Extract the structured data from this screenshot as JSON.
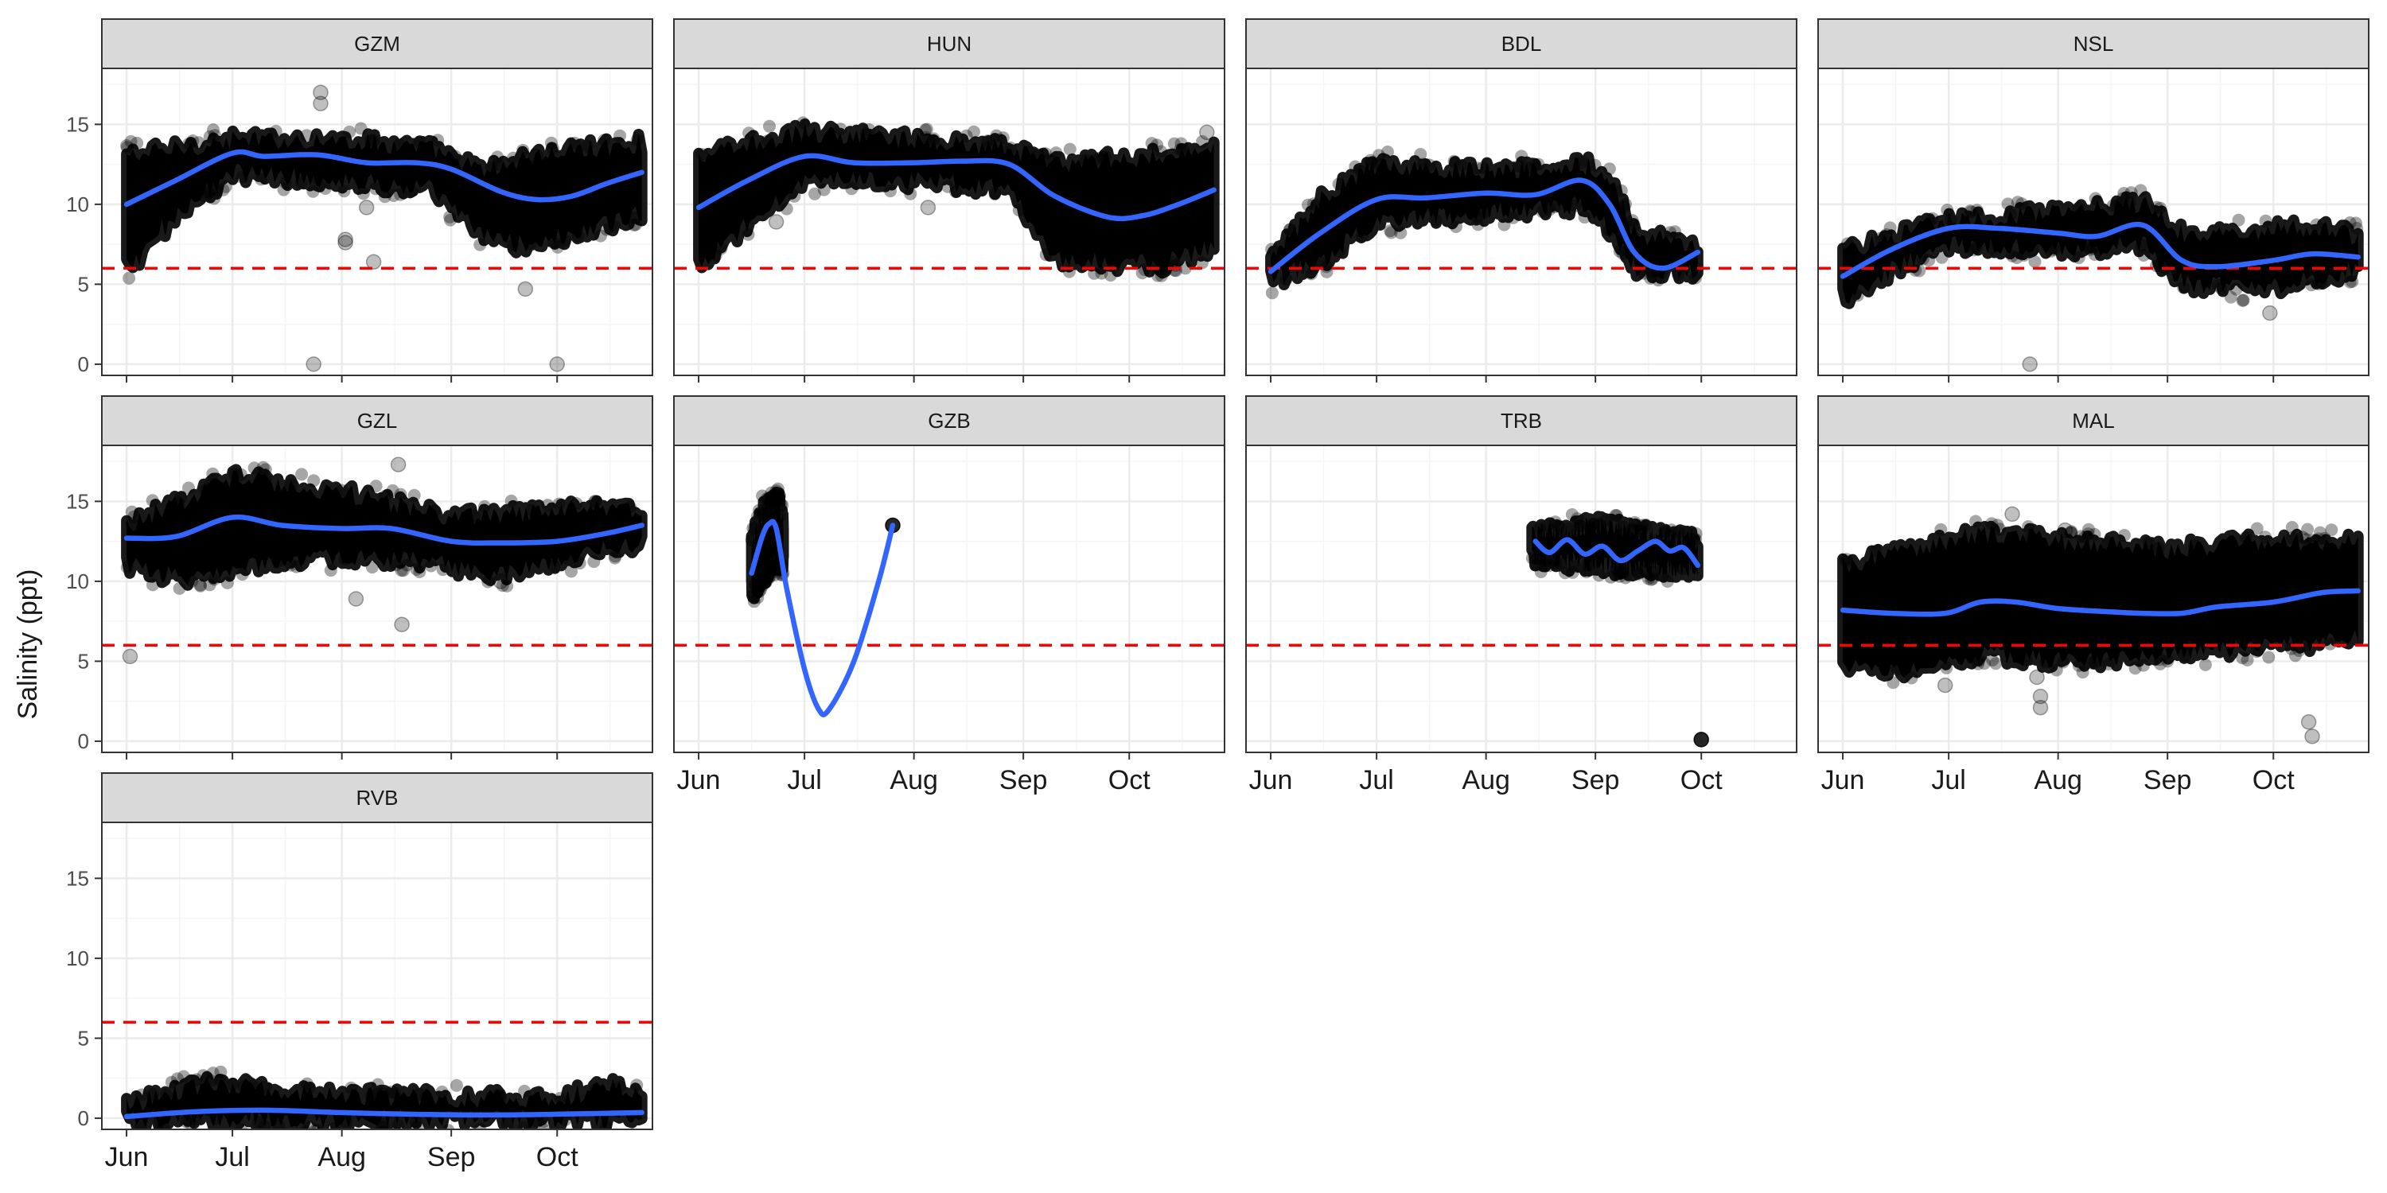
{
  "colors": {
    "panel_border": "#333333",
    "strip_fill": "#d9d9d9",
    "grid_major": "#ebebeb",
    "grid_minor": "#f5f5f5",
    "points": "#000000",
    "smooth": "#3366ff",
    "threshold": "#ff0000"
  },
  "chart_data": {
    "type": "scatter",
    "subtype": "faceted time series with smoother",
    "xlabel": "",
    "ylabel": "Salinity (ppt)",
    "x_type": "date",
    "xlim": [
      "2019-05-25",
      "2019-10-28"
    ],
    "ylim": [
      -0.7,
      18.5
    ],
    "x_ticks": [
      {
        "date": "2019-06-01",
        "label": "Jun"
      },
      {
        "date": "2019-07-01",
        "label": "Jul"
      },
      {
        "date": "2019-08-01",
        "label": "Aug"
      },
      {
        "date": "2019-09-01",
        "label": "Sep"
      },
      {
        "date": "2019-10-01",
        "label": "Oct"
      }
    ],
    "y_ticks": [
      0,
      5,
      10,
      15
    ],
    "threshold": {
      "y": 6,
      "style": "dashed",
      "color": "#ff0000"
    },
    "grid": true,
    "facets": [
      {
        "label": "GZM",
        "smooth": [
          [
            "2019-06-01",
            10.0
          ],
          [
            "2019-06-15",
            11.5
          ],
          [
            "2019-07-01",
            13.2
          ],
          [
            "2019-07-10",
            13.0
          ],
          [
            "2019-07-25",
            13.1
          ],
          [
            "2019-08-08",
            12.6
          ],
          [
            "2019-08-22",
            12.6
          ],
          [
            "2019-09-01",
            12.2
          ],
          [
            "2019-09-15",
            10.8
          ],
          [
            "2019-09-25",
            10.3
          ],
          [
            "2019-10-05",
            10.5
          ],
          [
            "2019-10-15",
            11.3
          ],
          [
            "2019-10-25",
            12.0
          ]
        ],
        "band_upper": [
          [
            "2019-06-01",
            13.0
          ],
          [
            "2019-07-01",
            14.0
          ],
          [
            "2019-08-01",
            14.0
          ],
          [
            "2019-08-25",
            13.5
          ],
          [
            "2019-09-10",
            12.0
          ],
          [
            "2019-09-20",
            12.8
          ],
          [
            "2019-10-10",
            13.5
          ],
          [
            "2019-10-25",
            13.8
          ]
        ],
        "band_lower": [
          [
            "2019-06-01",
            6.0
          ],
          [
            "2019-06-15",
            9.5
          ],
          [
            "2019-07-01",
            12.0
          ],
          [
            "2019-08-01",
            11.5
          ],
          [
            "2019-08-25",
            11.0
          ],
          [
            "2019-09-10",
            8.0
          ],
          [
            "2019-09-20",
            7.5
          ],
          [
            "2019-10-05",
            8.0
          ],
          [
            "2019-10-25",
            9.5
          ]
        ],
        "outliers": [
          [
            "2019-07-24",
            0.0
          ],
          [
            "2019-07-26",
            17.0
          ],
          [
            "2019-07-26",
            16.3
          ],
          [
            "2019-08-02",
            7.8
          ],
          [
            "2019-08-02",
            7.6
          ],
          [
            "2019-08-08",
            9.8
          ],
          [
            "2019-08-10",
            6.4
          ],
          [
            "2019-09-22",
            4.7
          ],
          [
            "2019-10-01",
            0.0
          ],
          [
            "2019-09-25",
            13.0
          ]
        ]
      },
      {
        "label": "HUN",
        "smooth": [
          [
            "2019-06-01",
            9.8
          ],
          [
            "2019-06-15",
            11.5
          ],
          [
            "2019-07-01",
            13.0
          ],
          [
            "2019-07-15",
            12.6
          ],
          [
            "2019-08-01",
            12.6
          ],
          [
            "2019-08-15",
            12.7
          ],
          [
            "2019-08-28",
            12.5
          ],
          [
            "2019-09-10",
            10.5
          ],
          [
            "2019-09-25",
            9.2
          ],
          [
            "2019-10-05",
            9.3
          ],
          [
            "2019-10-15",
            10.0
          ],
          [
            "2019-10-25",
            10.9
          ]
        ],
        "band_upper": [
          [
            "2019-06-01",
            13.0
          ],
          [
            "2019-07-01",
            14.5
          ],
          [
            "2019-08-01",
            14.0
          ],
          [
            "2019-08-28",
            13.5
          ],
          [
            "2019-09-10",
            12.5
          ],
          [
            "2019-10-10",
            13.0
          ],
          [
            "2019-10-25",
            13.8
          ]
        ],
        "band_lower": [
          [
            "2019-06-01",
            6.0
          ],
          [
            "2019-06-15",
            9.0
          ],
          [
            "2019-07-01",
            11.5
          ],
          [
            "2019-08-01",
            11.5
          ],
          [
            "2019-08-28",
            11.0
          ],
          [
            "2019-09-10",
            6.5
          ],
          [
            "2019-10-10",
            6.3
          ],
          [
            "2019-10-25",
            7.5
          ]
        ],
        "outliers": [
          [
            "2019-06-23",
            8.9
          ],
          [
            "2019-08-05",
            9.8
          ],
          [
            "2019-10-23",
            14.5
          ]
        ]
      },
      {
        "label": "BDL",
        "smooth": [
          [
            "2019-06-01",
            5.8
          ],
          [
            "2019-06-15",
            8.2
          ],
          [
            "2019-07-01",
            10.3
          ],
          [
            "2019-07-15",
            10.4
          ],
          [
            "2019-08-01",
            10.7
          ],
          [
            "2019-08-15",
            10.6
          ],
          [
            "2019-08-28",
            11.5
          ],
          [
            "2019-09-05",
            10.0
          ],
          [
            "2019-09-12",
            7.0
          ],
          [
            "2019-09-20",
            6.0
          ],
          [
            "2019-09-30",
            7.0
          ]
        ],
        "band_upper": [
          [
            "2019-06-01",
            6.5
          ],
          [
            "2019-06-15",
            10.5
          ],
          [
            "2019-07-01",
            12.5
          ],
          [
            "2019-08-01",
            12.0
          ],
          [
            "2019-08-28",
            12.5
          ],
          [
            "2019-09-05",
            11.5
          ],
          [
            "2019-09-12",
            8.0
          ],
          [
            "2019-09-30",
            7.5
          ]
        ],
        "band_lower": [
          [
            "2019-06-01",
            5.3
          ],
          [
            "2019-06-15",
            6.5
          ],
          [
            "2019-07-01",
            9.0
          ],
          [
            "2019-08-01",
            9.5
          ],
          [
            "2019-08-28",
            10.0
          ],
          [
            "2019-09-05",
            8.5
          ],
          [
            "2019-09-12",
            6.0
          ],
          [
            "2019-09-30",
            5.8
          ]
        ],
        "outliers": []
      },
      {
        "label": "NSL",
        "smooth": [
          [
            "2019-06-01",
            5.5
          ],
          [
            "2019-06-15",
            7.2
          ],
          [
            "2019-07-01",
            8.5
          ],
          [
            "2019-07-15",
            8.5
          ],
          [
            "2019-08-01",
            8.2
          ],
          [
            "2019-08-12",
            8.0
          ],
          [
            "2019-08-25",
            8.7
          ],
          [
            "2019-09-05",
            6.5
          ],
          [
            "2019-09-15",
            6.1
          ],
          [
            "2019-10-01",
            6.5
          ],
          [
            "2019-10-12",
            6.9
          ],
          [
            "2019-10-25",
            6.7
          ]
        ],
        "band_upper": [
          [
            "2019-06-01",
            7.0
          ],
          [
            "2019-07-01",
            9.0
          ],
          [
            "2019-08-01",
            9.5
          ],
          [
            "2019-08-25",
            10.0
          ],
          [
            "2019-09-05",
            8.0
          ],
          [
            "2019-10-10",
            8.5
          ],
          [
            "2019-10-25",
            8.0
          ]
        ],
        "band_lower": [
          [
            "2019-06-01",
            4.2
          ],
          [
            "2019-06-15",
            6.0
          ],
          [
            "2019-07-01",
            7.5
          ],
          [
            "2019-08-01",
            7.2
          ],
          [
            "2019-08-25",
            7.5
          ],
          [
            "2019-09-05",
            5.0
          ],
          [
            "2019-10-01",
            4.8
          ],
          [
            "2019-10-25",
            6.0
          ]
        ],
        "outliers": [
          [
            "2019-07-24",
            0.0
          ],
          [
            "2019-09-30",
            3.2
          ]
        ]
      },
      {
        "label": "GZL",
        "smooth": [
          [
            "2019-06-01",
            12.7
          ],
          [
            "2019-06-15",
            12.8
          ],
          [
            "2019-07-01",
            14.0
          ],
          [
            "2019-07-15",
            13.5
          ],
          [
            "2019-08-01",
            13.3
          ],
          [
            "2019-08-15",
            13.3
          ],
          [
            "2019-09-01",
            12.5
          ],
          [
            "2019-09-15",
            12.4
          ],
          [
            "2019-10-01",
            12.5
          ],
          [
            "2019-10-15",
            13.0
          ],
          [
            "2019-10-25",
            13.5
          ]
        ],
        "band_upper": [
          [
            "2019-06-01",
            13.5
          ],
          [
            "2019-07-01",
            16.5
          ],
          [
            "2019-08-01",
            15.5
          ],
          [
            "2019-09-01",
            14.0
          ],
          [
            "2019-10-10",
            14.5
          ],
          [
            "2019-10-25",
            14.5
          ]
        ],
        "band_lower": [
          [
            "2019-06-01",
            11.0
          ],
          [
            "2019-06-20",
            10.0
          ],
          [
            "2019-07-15",
            11.5
          ],
          [
            "2019-08-15",
            11.5
          ],
          [
            "2019-09-15",
            10.5
          ],
          [
            "2019-10-25",
            12.5
          ]
        ],
        "outliers": [
          [
            "2019-06-02",
            5.3
          ],
          [
            "2019-08-05",
            8.9
          ],
          [
            "2019-08-18",
            7.3
          ],
          [
            "2019-08-17",
            17.3
          ],
          [
            "2019-09-15",
            10.0
          ]
        ]
      },
      {
        "label": "GZB",
        "smooth": [
          [
            "2019-06-16",
            10.5
          ],
          [
            "2019-06-19",
            12.8
          ],
          [
            "2019-06-21",
            13.6
          ],
          [
            "2019-06-23",
            13.3
          ],
          [
            "2019-06-26",
            9.5
          ],
          [
            "2019-07-01",
            4.5
          ],
          [
            "2019-07-05",
            2.0
          ],
          [
            "2019-07-08",
            2.0
          ],
          [
            "2019-07-15",
            5.0
          ],
          [
            "2019-07-22",
            10.0
          ],
          [
            "2019-07-26",
            13.5
          ]
        ],
        "band_upper": [
          [
            "2019-06-16",
            12.5
          ],
          [
            "2019-06-19",
            14.5
          ],
          [
            "2019-06-23",
            15.0
          ],
          [
            "2019-06-25",
            13.0
          ]
        ],
        "band_lower": [
          [
            "2019-06-16",
            9.5
          ],
          [
            "2019-06-19",
            10.5
          ],
          [
            "2019-06-23",
            11.5
          ],
          [
            "2019-06-25",
            11.0
          ]
        ],
        "outliers": [
          [
            "2019-07-26",
            13.5
          ]
        ]
      },
      {
        "label": "TRB",
        "smooth": [
          [
            "2019-08-15",
            12.5
          ],
          [
            "2019-08-19",
            11.8
          ],
          [
            "2019-08-24",
            12.6
          ],
          [
            "2019-08-29",
            11.7
          ],
          [
            "2019-09-03",
            12.2
          ],
          [
            "2019-09-08",
            11.3
          ],
          [
            "2019-09-13",
            11.9
          ],
          [
            "2019-09-18",
            12.5
          ],
          [
            "2019-09-22",
            11.9
          ],
          [
            "2019-09-26",
            12.1
          ],
          [
            "2019-09-30",
            11.0
          ]
        ],
        "band_upper": [
          [
            "2019-08-14",
            13.0
          ],
          [
            "2019-09-01",
            13.5
          ],
          [
            "2019-09-15",
            13.0
          ],
          [
            "2019-09-30",
            12.5
          ]
        ],
        "band_lower": [
          [
            "2019-08-14",
            11.5
          ],
          [
            "2019-09-01",
            11.0
          ],
          [
            "2019-09-15",
            10.8
          ],
          [
            "2019-09-30",
            10.8
          ]
        ],
        "outliers": [
          [
            "2019-10-01",
            0.1
          ]
        ]
      },
      {
        "label": "MAL",
        "smooth": [
          [
            "2019-06-01",
            8.2
          ],
          [
            "2019-06-15",
            8.0
          ],
          [
            "2019-06-30",
            8.0
          ],
          [
            "2019-07-10",
            8.7
          ],
          [
            "2019-07-20",
            8.7
          ],
          [
            "2019-08-01",
            8.3
          ],
          [
            "2019-08-15",
            8.1
          ],
          [
            "2019-08-25",
            8.0
          ],
          [
            "2019-09-05",
            8.0
          ],
          [
            "2019-09-15",
            8.4
          ],
          [
            "2019-10-01",
            8.7
          ],
          [
            "2019-10-15",
            9.3
          ],
          [
            "2019-10-25",
            9.4
          ]
        ],
        "band_upper": [
          [
            "2019-06-01",
            11.0
          ],
          [
            "2019-06-20",
            12.0
          ],
          [
            "2019-07-10",
            13.0
          ],
          [
            "2019-08-01",
            12.5
          ],
          [
            "2019-09-01",
            12.0
          ],
          [
            "2019-10-01",
            12.5
          ],
          [
            "2019-10-25",
            12.5
          ]
        ],
        "band_lower": [
          [
            "2019-06-01",
            4.5
          ],
          [
            "2019-06-20",
            4.5
          ],
          [
            "2019-07-10",
            5.5
          ],
          [
            "2019-08-01",
            5.0
          ],
          [
            "2019-09-01",
            5.5
          ],
          [
            "2019-10-01",
            6.0
          ],
          [
            "2019-10-25",
            6.5
          ]
        ],
        "outliers": [
          [
            "2019-06-30",
            3.5
          ],
          [
            "2019-07-27",
            2.8
          ],
          [
            "2019-07-27",
            2.1
          ],
          [
            "2019-07-26",
            4.0
          ],
          [
            "2019-07-19",
            14.2
          ],
          [
            "2019-08-03",
            13.2
          ],
          [
            "2019-10-11",
            1.2
          ],
          [
            "2019-10-12",
            0.3
          ]
        ]
      },
      {
        "label": "RVB",
        "smooth": [
          [
            "2019-06-01",
            0.1
          ],
          [
            "2019-06-20",
            0.4
          ],
          [
            "2019-07-10",
            0.5
          ],
          [
            "2019-08-01",
            0.35
          ],
          [
            "2019-08-20",
            0.25
          ],
          [
            "2019-09-10",
            0.2
          ],
          [
            "2019-10-01",
            0.25
          ],
          [
            "2019-10-25",
            0.35
          ]
        ],
        "band_upper": [
          [
            "2019-06-01",
            0.8
          ],
          [
            "2019-06-25",
            2.2
          ],
          [
            "2019-07-10",
            1.8
          ],
          [
            "2019-08-01",
            1.4
          ],
          [
            "2019-09-01",
            1.2
          ],
          [
            "2019-10-01",
            1.2
          ],
          [
            "2019-10-15",
            2.0
          ],
          [
            "2019-10-25",
            1.6
          ]
        ],
        "band_lower": [
          [
            "2019-06-01",
            0.0
          ],
          [
            "2019-10-25",
            0.0
          ]
        ],
        "outliers": []
      }
    ]
  }
}
